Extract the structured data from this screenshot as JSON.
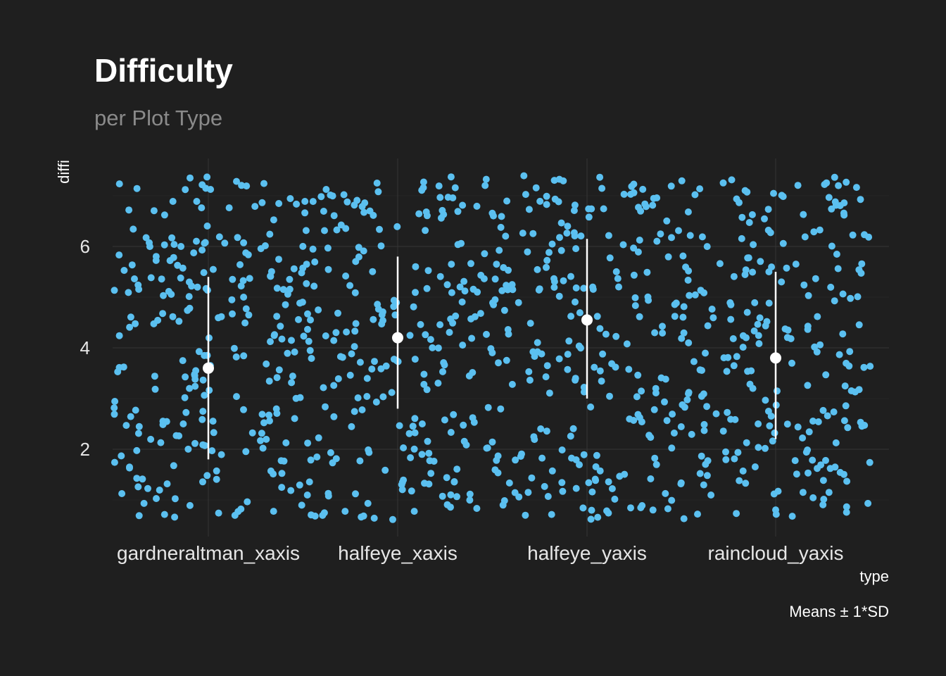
{
  "colors": {
    "background": "#1f1f1f",
    "points": "#5bc0f0",
    "summary": "#ffffff",
    "grid_major": "#353535",
    "grid_minor": "#2a2a2a"
  },
  "chart_data": {
    "type": "scatter",
    "title": "Difficulty",
    "subtitle": "per Plot Type",
    "xlabel": "type",
    "ylabel": "diffi",
    "caption": "Means ± 1*SD",
    "categories": [
      "gardneraltman_xaxis",
      "halfeye_xaxis",
      "halfeye_yaxis",
      "raincloud_yaxis"
    ],
    "yticks": [
      2,
      4,
      6
    ],
    "ylim": [
      0.3,
      7.7
    ],
    "grid": true,
    "jitter_width": 0.42,
    "summary": [
      {
        "category": "gardneraltman_xaxis",
        "mean": 3.6,
        "sd_low": 1.8,
        "sd_high": 5.4
      },
      {
        "category": "halfeye_xaxis",
        "mean": 4.2,
        "sd_low": 2.8,
        "sd_high": 5.8
      },
      {
        "category": "halfeye_yaxis",
        "mean": 4.55,
        "sd_low": 3.0,
        "sd_high": 6.15
      },
      {
        "category": "raincloud_yaxis",
        "mean": 3.8,
        "sd_low": 2.2,
        "sd_high": 5.5
      }
    ],
    "points_per_category": 240,
    "points_range": [
      0.6,
      7.4
    ]
  }
}
